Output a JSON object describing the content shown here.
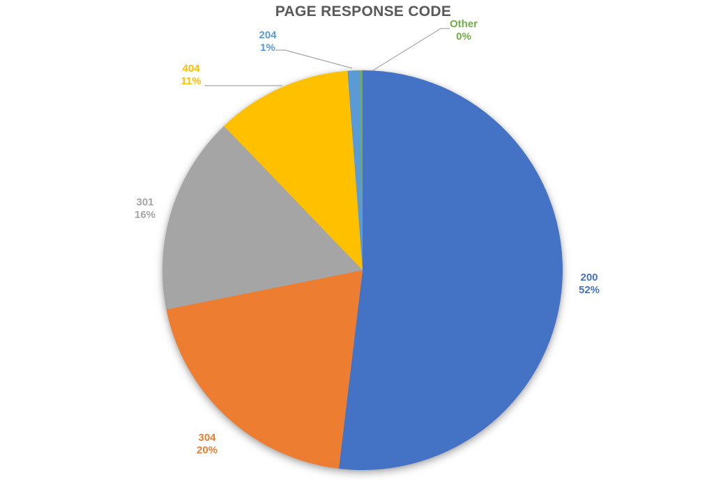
{
  "chart_data": {
    "type": "pie",
    "title": "PAGE RESPONSE CODE",
    "title_color": "#595959",
    "background_color": "#FFFFFF",
    "legend": "none",
    "start_angle_deg": 0,
    "direction": "clockwise",
    "labels_outside": true,
    "label_format": "category name + percentage, text colored to match slice",
    "slices": [
      {
        "category": "200",
        "percent_label": "52%",
        "value_pct": 52,
        "color": "#4472C4"
      },
      {
        "category": "304",
        "percent_label": "20%",
        "value_pct": 20,
        "color": "#ED7D31"
      },
      {
        "category": "301",
        "percent_label": "16%",
        "value_pct": 16,
        "color": "#A5A5A5"
      },
      {
        "category": "404",
        "percent_label": "11%",
        "value_pct": 11,
        "color": "#FFC000"
      },
      {
        "category": "204",
        "percent_label": "1%",
        "value_pct": 1,
        "color": "#5B9BD5"
      },
      {
        "category": "Other",
        "percent_label": "0%",
        "value_pct": 0,
        "color": "#70AD47"
      }
    ],
    "leader_lines_for": [
      "404",
      "204",
      "Other"
    ],
    "leader_line_color": "#A6A6A6"
  }
}
